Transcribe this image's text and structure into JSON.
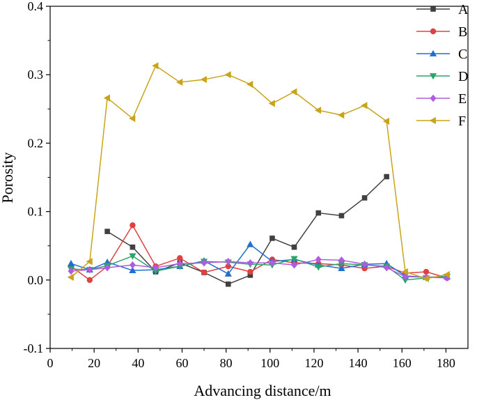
{
  "chart_data": {
    "type": "line",
    "title": "",
    "xlabel": "Advancing distance/m",
    "ylabel": "Porosity",
    "xlim": [
      0,
      190
    ],
    "ylim": [
      -0.1,
      0.4
    ],
    "xticks": [
      0,
      20,
      40,
      60,
      80,
      100,
      120,
      140,
      160,
      180
    ],
    "yticks": [
      -0.1,
      0.0,
      0.1,
      0.2,
      0.3,
      0.4
    ],
    "xtick_labels": [
      "0",
      "20",
      "40",
      "60",
      "80",
      "100",
      "120",
      "140",
      "160",
      "180"
    ],
    "ytick_labels": [
      "-0.1",
      "0.0",
      "0.1",
      "0.2",
      "0.3",
      "0.4"
    ],
    "grid": false,
    "legend_position": "top-right",
    "series": [
      {
        "name": "A",
        "color": "#404040",
        "marker": "square",
        "x": [
          26,
          37.5,
          48,
          59,
          70,
          81,
          91,
          101,
          111,
          122,
          132.5,
          143,
          153
        ],
        "y": [
          0.071,
          0.048,
          0.012,
          0.025,
          0.011,
          -0.006,
          0.007,
          0.061,
          0.048,
          0.098,
          0.094,
          0.12,
          0.151
        ]
      },
      {
        "name": "B",
        "color": "#e0403e",
        "marker": "circle",
        "x": [
          9.5,
          18,
          26,
          37.5,
          48,
          59,
          70,
          81,
          91,
          101,
          111,
          122,
          132.5,
          143,
          153,
          161.5,
          171,
          180.5
        ],
        "y": [
          0.02,
          0.0,
          0.02,
          0.08,
          0.02,
          0.032,
          0.011,
          0.02,
          0.012,
          0.03,
          0.025,
          0.024,
          0.022,
          0.017,
          0.02,
          0.01,
          0.012,
          0.003
        ]
      },
      {
        "name": "C",
        "color": "#1f6fd1",
        "marker": "triangle-up",
        "x": [
          9.5,
          18,
          26,
          37.5,
          48,
          59,
          70,
          81,
          91,
          101,
          111,
          122,
          132.5,
          143,
          153,
          161.5,
          171,
          180.5
        ],
        "y": [
          0.024,
          0.015,
          0.026,
          0.014,
          0.015,
          0.02,
          0.028,
          0.009,
          0.052,
          0.027,
          0.03,
          0.022,
          0.017,
          0.023,
          0.024,
          0.006,
          0.004,
          0.005
        ]
      },
      {
        "name": "D",
        "color": "#2aa56a",
        "marker": "triangle-down",
        "x": [
          9.5,
          18,
          26,
          37.5,
          48,
          59,
          70,
          81,
          91,
          101,
          111,
          122,
          132.5,
          143,
          153,
          161.5,
          171,
          180.5
        ],
        "y": [
          0.016,
          0.015,
          0.021,
          0.035,
          0.013,
          0.02,
          0.027,
          0.026,
          0.023,
          0.022,
          0.031,
          0.019,
          0.024,
          0.022,
          0.02,
          0.0,
          0.003,
          0.005
        ]
      },
      {
        "name": "E",
        "color": "#b05be0",
        "marker": "diamond",
        "x": [
          9.5,
          18,
          26,
          37.5,
          48,
          59,
          70,
          81,
          91,
          101,
          111,
          122,
          132.5,
          143,
          153,
          161.5,
          171,
          180.5
        ],
        "y": [
          0.013,
          0.015,
          0.018,
          0.022,
          0.018,
          0.024,
          0.025,
          0.027,
          0.025,
          0.025,
          0.022,
          0.03,
          0.029,
          0.023,
          0.018,
          0.005,
          0.004,
          0.003
        ]
      },
      {
        "name": "F",
        "color": "#c9a418",
        "marker": "triangle-left",
        "x": [
          9.5,
          18,
          26,
          37.5,
          48,
          59,
          70,
          81,
          91,
          101,
          111,
          122,
          132.5,
          143,
          153,
          161.5,
          171,
          180.5
        ],
        "y": [
          0.004,
          0.027,
          0.266,
          0.236,
          0.313,
          0.289,
          0.293,
          0.3,
          0.286,
          0.258,
          0.275,
          0.248,
          0.241,
          0.255,
          0.232,
          0.012,
          0.002,
          0.008
        ]
      }
    ]
  }
}
